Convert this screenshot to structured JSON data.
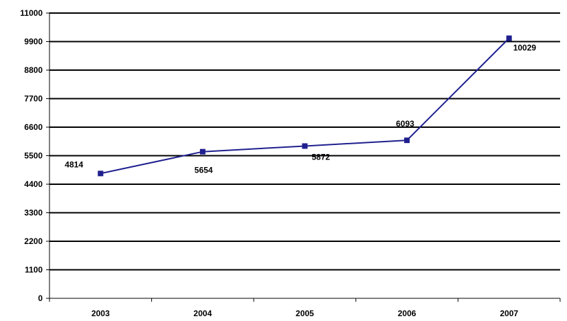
{
  "chart_data": {
    "type": "line",
    "title": "",
    "xlabel": "",
    "ylabel": "",
    "categories": [
      "2003",
      "2004",
      "2005",
      "2006",
      "2007"
    ],
    "series": [
      {
        "values": [
          4814,
          5654,
          5872,
          6093,
          10029
        ],
        "color": "#1f1f8f"
      }
    ],
    "data_labels": [
      "4814",
      "5654",
      "5872",
      "6093",
      "10029"
    ],
    "ylim": [
      0,
      11000
    ],
    "yticks": [
      0,
      1100,
      2200,
      3300,
      4400,
      5500,
      6600,
      7700,
      8800,
      9900,
      11000
    ],
    "ytick_labels": [
      "0",
      "1100",
      "2200",
      "3300",
      "4400",
      "5500",
      "6600",
      "7700",
      "8800",
      "9900",
      "11000"
    ],
    "grid": true,
    "legend": "none"
  }
}
